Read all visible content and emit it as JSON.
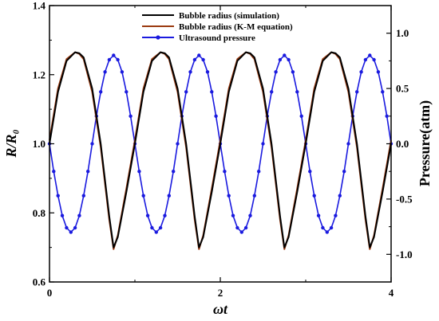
{
  "chart_data": {
    "type": "line",
    "xlabel": "ωt",
    "ylabel_left": "R/R₀",
    "ylabel_right": "Pressure(atm)",
    "xlim": [
      0,
      4
    ],
    "ylim_left": [
      0.6,
      1.4
    ],
    "ylim_right": [
      -1.25,
      1.25
    ],
    "x_ticks": [
      "0",
      "2",
      "4"
    ],
    "y_left_ticks": [
      "0.6",
      "0.8",
      "1.0",
      "1.2",
      "1.4"
    ],
    "y_right_ticks": [
      "-1.0",
      "-0.5",
      "0.0",
      "0.5",
      "1.0"
    ],
    "legend_position": "top-center",
    "grid": false,
    "series": [
      {
        "name": "Bubble radius (simulation)",
        "axis": "left",
        "color": "#000000",
        "marker": "none",
        "x": [
          0,
          0.1,
          0.2,
          0.3,
          0.35,
          0.4,
          0.5,
          0.6,
          0.7,
          0.75,
          0.8,
          0.9,
          1.0,
          1.1,
          1.2,
          1.3,
          1.35,
          1.4,
          1.5,
          1.6,
          1.7,
          1.75,
          1.8,
          1.9,
          2.0,
          2.1,
          2.2,
          2.3,
          2.35,
          2.4,
          2.5,
          2.6,
          2.7,
          2.75,
          2.8,
          2.9,
          3.0,
          3.1,
          3.2,
          3.3,
          3.35,
          3.4,
          3.5,
          3.6,
          3.7,
          3.75,
          3.8,
          3.9,
          4.0
        ],
        "y": [
          1.0,
          1.15,
          1.24,
          1.265,
          1.262,
          1.25,
          1.16,
          1.0,
          0.79,
          0.7,
          0.73,
          0.86,
          1.0,
          1.15,
          1.24,
          1.265,
          1.262,
          1.25,
          1.16,
          1.0,
          0.79,
          0.7,
          0.73,
          0.86,
          1.0,
          1.15,
          1.24,
          1.265,
          1.262,
          1.25,
          1.16,
          1.0,
          0.79,
          0.7,
          0.73,
          0.86,
          1.0,
          1.15,
          1.24,
          1.265,
          1.262,
          1.25,
          1.16,
          1.0,
          0.79,
          0.7,
          0.73,
          0.86,
          1.0
        ]
      },
      {
        "name": "Bubble radius (K-M equation)",
        "axis": "left",
        "color": "#9a3a10",
        "marker": "none",
        "x": [
          0,
          0.1,
          0.2,
          0.3,
          0.35,
          0.4,
          0.5,
          0.6,
          0.7,
          0.75,
          0.8,
          0.9,
          1.0,
          1.1,
          1.2,
          1.3,
          1.35,
          1.4,
          1.5,
          1.6,
          1.7,
          1.75,
          1.8,
          1.9,
          2.0,
          2.1,
          2.2,
          2.3,
          2.35,
          2.4,
          2.5,
          2.6,
          2.7,
          2.75,
          2.8,
          2.9,
          3.0,
          3.1,
          3.2,
          3.3,
          3.35,
          3.4,
          3.5,
          3.6,
          3.7,
          3.75,
          3.8,
          3.9,
          4.0
        ],
        "y": [
          1.01,
          1.16,
          1.245,
          1.265,
          1.26,
          1.245,
          1.15,
          0.99,
          0.78,
          0.695,
          0.735,
          0.87,
          1.01,
          1.16,
          1.245,
          1.265,
          1.26,
          1.245,
          1.15,
          0.99,
          0.78,
          0.695,
          0.735,
          0.87,
          1.01,
          1.16,
          1.245,
          1.265,
          1.26,
          1.245,
          1.15,
          0.99,
          0.78,
          0.695,
          0.735,
          0.87,
          1.01,
          1.16,
          1.245,
          1.265,
          1.26,
          1.245,
          1.15,
          0.99,
          0.78,
          0.695,
          0.735,
          0.87,
          1.01
        ]
      },
      {
        "name": "Ultrasound pressure",
        "axis": "right",
        "color": "#1a1adf",
        "marker": "circle",
        "x": [
          0,
          0.05,
          0.1,
          0.15,
          0.2,
          0.25,
          0.3,
          0.35,
          0.4,
          0.45,
          0.5,
          0.55,
          0.6,
          0.65,
          0.7,
          0.75,
          0.8,
          0.85,
          0.9,
          0.95,
          1.0,
          1.05,
          1.1,
          1.15,
          1.2,
          1.25,
          1.3,
          1.35,
          1.4,
          1.45,
          1.5,
          1.55,
          1.6,
          1.65,
          1.7,
          1.75,
          1.8,
          1.85,
          1.9,
          1.95,
          2.0,
          2.05,
          2.1,
          2.15,
          2.2,
          2.25,
          2.3,
          2.35,
          2.4,
          2.45,
          2.5,
          2.55,
          2.6,
          2.65,
          2.7,
          2.75,
          2.8,
          2.85,
          2.9,
          2.95,
          3.0,
          3.05,
          3.1,
          3.15,
          3.2,
          3.25,
          3.3,
          3.35,
          3.4,
          3.45,
          3.5,
          3.55,
          3.6,
          3.65,
          3.7,
          3.75,
          3.8,
          3.85,
          3.9,
          3.95,
          4.0
        ],
        "y": [
          0.0,
          -0.25,
          -0.47,
          -0.65,
          -0.76,
          -0.8,
          -0.76,
          -0.65,
          -0.47,
          -0.25,
          0.0,
          0.25,
          0.47,
          0.65,
          0.76,
          0.8,
          0.76,
          0.65,
          0.47,
          0.25,
          0.0,
          -0.25,
          -0.47,
          -0.65,
          -0.76,
          -0.8,
          -0.76,
          -0.65,
          -0.47,
          -0.25,
          0.0,
          0.25,
          0.47,
          0.65,
          0.76,
          0.8,
          0.76,
          0.65,
          0.47,
          0.25,
          0.0,
          -0.25,
          -0.47,
          -0.65,
          -0.76,
          -0.8,
          -0.76,
          -0.65,
          -0.47,
          -0.25,
          0.0,
          0.25,
          0.47,
          0.65,
          0.76,
          0.8,
          0.76,
          0.65,
          0.47,
          0.25,
          0.0,
          -0.25,
          -0.47,
          -0.65,
          -0.76,
          -0.8,
          -0.76,
          -0.65,
          -0.47,
          -0.25,
          0.0,
          0.25,
          0.47,
          0.65,
          0.76,
          0.8,
          0.76,
          0.65,
          0.47,
          0.25,
          0.0
        ]
      }
    ]
  }
}
